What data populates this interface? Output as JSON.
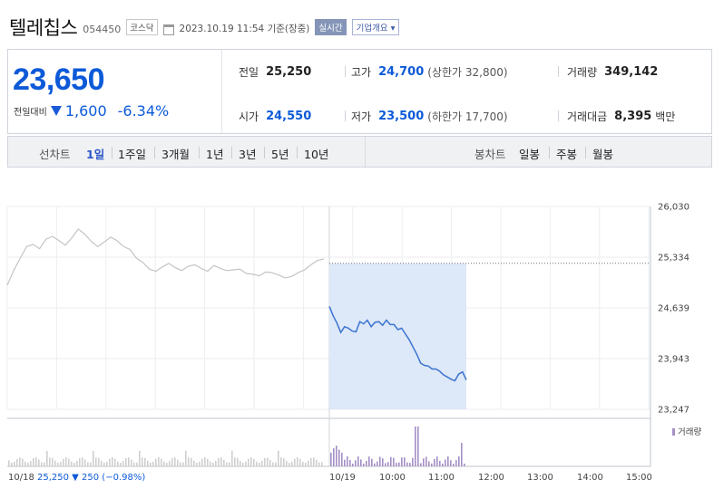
{
  "stock": {
    "name": "텔레칩스",
    "code": "054450",
    "market": "코스닥",
    "timestamp": "2023.10.19 11:54 기준(장중)",
    "realtime_badge": "실시간",
    "company_overview": "기업개요 ▾"
  },
  "summary": {
    "price": "23,650",
    "change_label": "전일대비",
    "change_amount": "1,600",
    "change_percent": "-6.34%",
    "prev_close_label": "전일",
    "prev_close": "25,250",
    "open_label": "시가",
    "open": "24,550",
    "high_label": "고가",
    "high": "24,700",
    "upper_limit": "(상한가 32,800)",
    "low_label": "저가",
    "low": "23,500",
    "lower_limit": "(하한가 17,700)",
    "volume_label": "거래량",
    "volume": "349,142",
    "trade_value_label": "거래대금",
    "trade_value": "8,395",
    "trade_value_unit": "백만"
  },
  "tabs": {
    "line_label": "선차트",
    "line_periods": [
      "1일",
      "1주일",
      "3개월",
      "1년",
      "3년",
      "5년",
      "10년"
    ],
    "active_period": "1일",
    "candle_label": "봉차트",
    "candle_periods": [
      "일봉",
      "주봉",
      "월봉"
    ]
  },
  "colors": {
    "accent_blue": "#0d5ad8",
    "today_line": "#3b74d0",
    "prev_line": "#c4c4c4",
    "fill": "#dde8f8",
    "volume_prev": "#cfcfcf",
    "volume_today": "#a38fc6"
  },
  "chart_data": {
    "type": "line",
    "y_ticks": [
      "26,030",
      "25,334",
      "24,639",
      "23,943",
      "23,247"
    ],
    "ylim": [
      23247,
      26030
    ],
    "x_ticks": [
      "10/19",
      "10:00",
      "11:00",
      "12:00",
      "13:00",
      "14:00",
      "15:00"
    ],
    "volume_legend": "거래량",
    "reference_price": 25250,
    "series": [
      {
        "values": [
          24950,
          25150,
          25320,
          25480,
          25510,
          25450,
          25580,
          25620,
          25560,
          25500,
          25600,
          25720,
          25650,
          25550,
          25480,
          25540,
          25610,
          25560,
          25480,
          25440,
          25320,
          25260,
          25170,
          25140,
          25200,
          25250,
          25190,
          25150,
          25210,
          25230,
          25180,
          25140,
          25220,
          25180,
          25150,
          25160,
          25170,
          25110,
          25100,
          25080,
          25130,
          25120,
          25090,
          25050,
          25070,
          25120,
          25160,
          25230,
          25290,
          25310
        ]
      },
      {
        "values": [
          24660,
          24530,
          24430,
          24300,
          24380,
          24360,
          24320,
          24310,
          24450,
          24420,
          24470,
          24380,
          24440,
          24450,
          24400,
          24470,
          24410,
          24410,
          24340,
          24360,
          24280,
          24200,
          24100,
          24000,
          23880,
          23850,
          23840,
          23800,
          23800,
          23770,
          23720,
          23690,
          23660,
          23640,
          23730,
          23760,
          23650
        ]
      }
    ],
    "footer": {
      "date": "10/18",
      "close": "25,250",
      "change": "250",
      "change_percent": "(−0.98%)"
    }
  }
}
